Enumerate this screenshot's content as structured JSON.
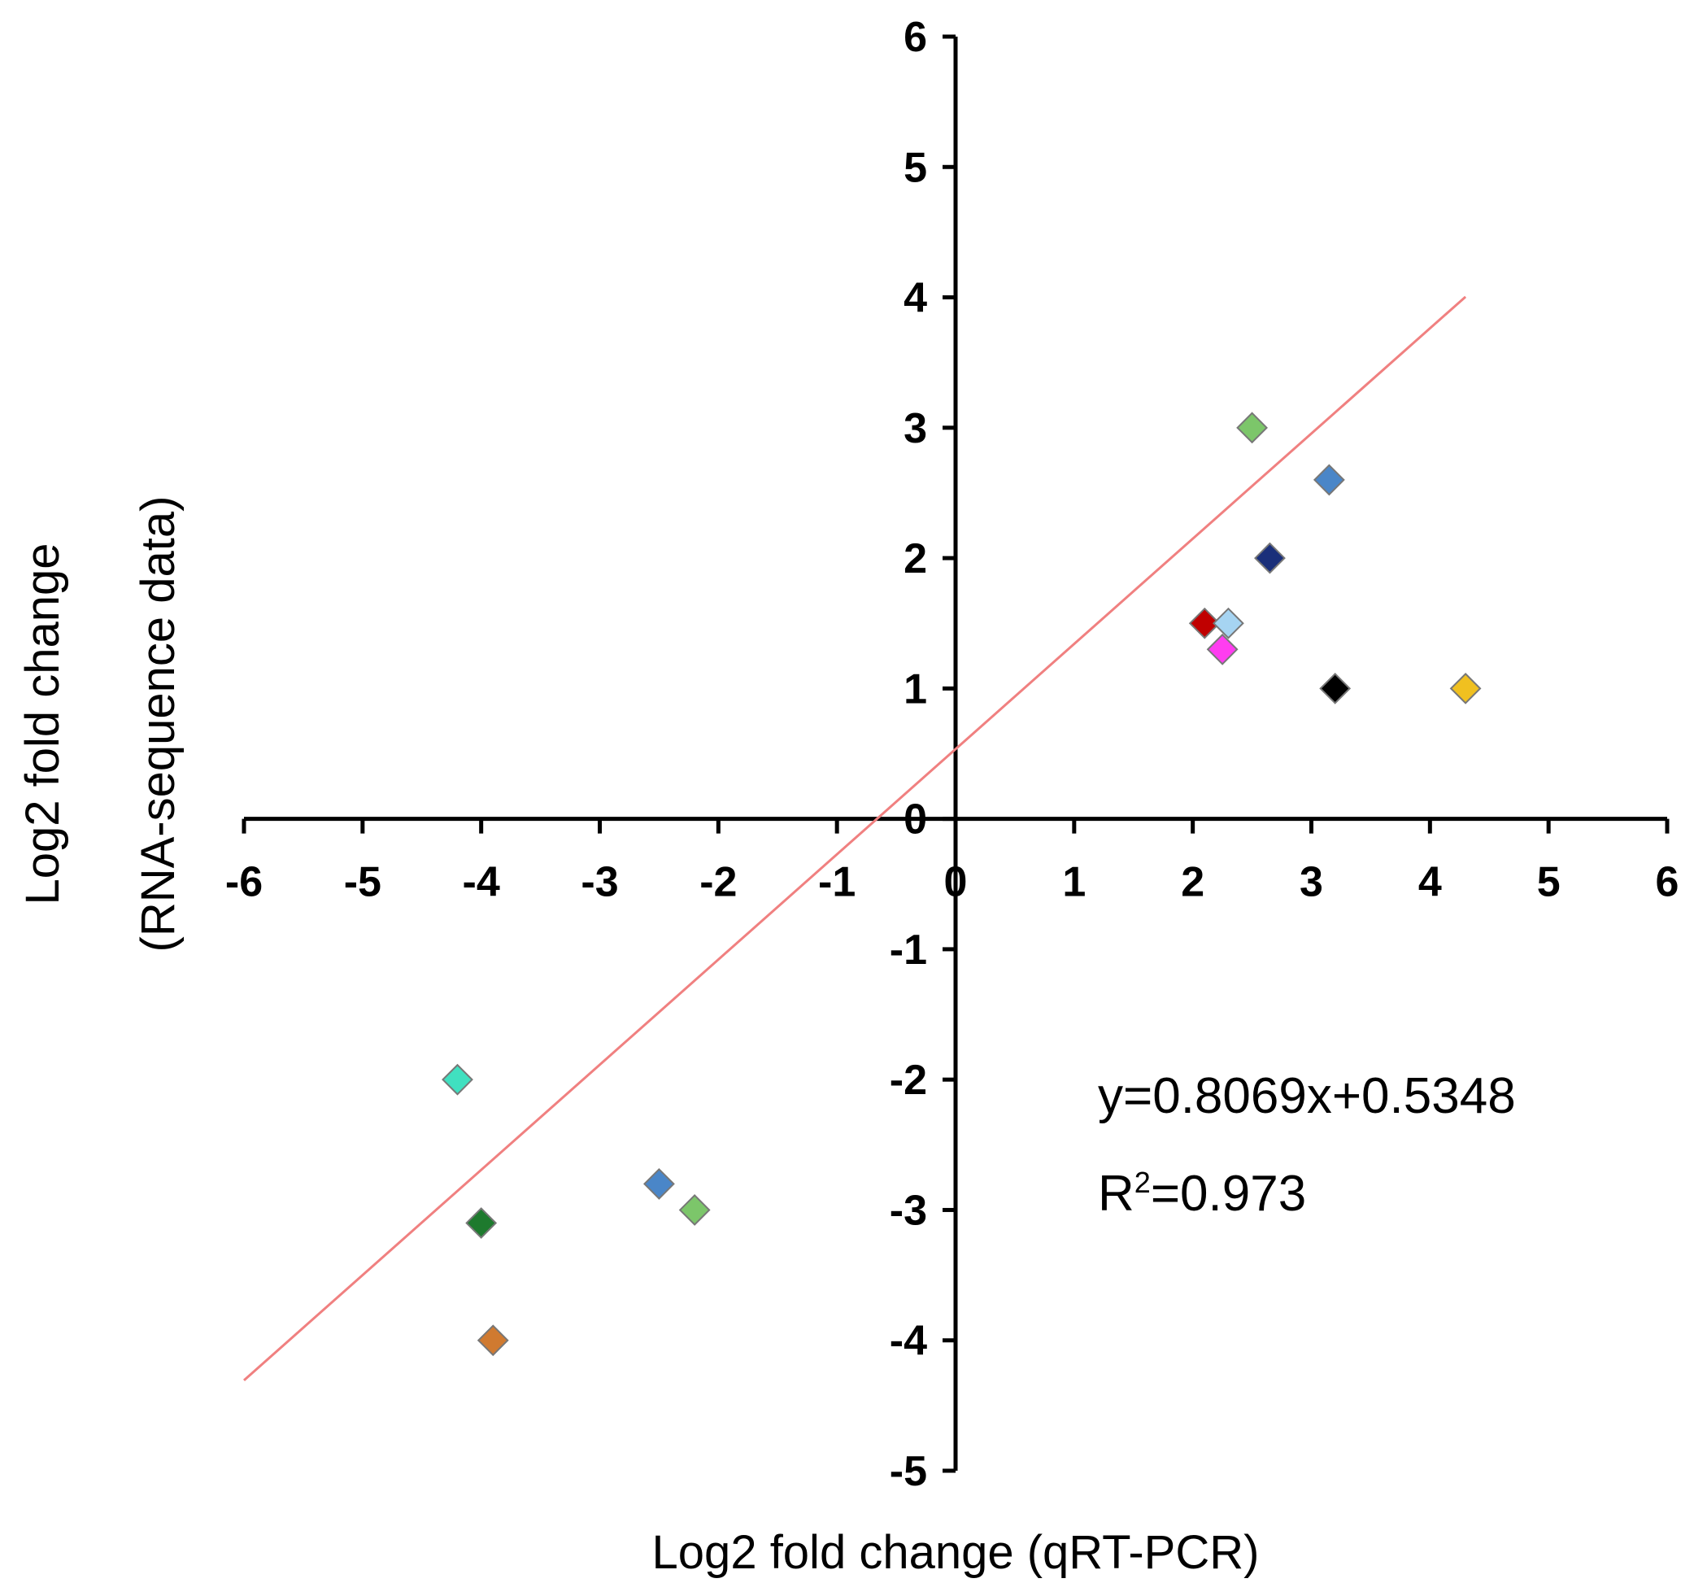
{
  "chart_data": {
    "type": "scatter",
    "title": "",
    "xlabel": "Log2 fold change (qRT-PCR)",
    "ylabel_line1": "Log2 fold change",
    "ylabel_line2": "(RNA-sequence data)",
    "xlim": [
      -6,
      6
    ],
    "ylim": [
      -5,
      6
    ],
    "xticks": [
      -6,
      -5,
      -4,
      -3,
      -2,
      -1,
      0,
      1,
      2,
      3,
      4,
      5,
      6
    ],
    "yticks": [
      -5,
      -4,
      -3,
      -2,
      -1,
      0,
      1,
      2,
      3,
      4,
      5,
      6
    ],
    "points": [
      {
        "x": -4.2,
        "y": -2.0,
        "color": "#40e0c0"
      },
      {
        "x": -4.0,
        "y": -3.1,
        "color": "#1e7a2e"
      },
      {
        "x": -3.9,
        "y": -4.0,
        "color": "#d07a30"
      },
      {
        "x": -2.5,
        "y": -2.8,
        "color": "#4a86c8"
      },
      {
        "x": -2.2,
        "y": -3.0,
        "color": "#7cc66a"
      },
      {
        "x": 2.1,
        "y": 1.5,
        "color": "#c00000"
      },
      {
        "x": 2.3,
        "y": 1.5,
        "color": "#a6d4f2"
      },
      {
        "x": 2.25,
        "y": 1.3,
        "color": "#ff3df0"
      },
      {
        "x": 2.5,
        "y": 3.0,
        "color": "#7cc66a"
      },
      {
        "x": 2.65,
        "y": 2.0,
        "color": "#1a2f7a"
      },
      {
        "x": 3.15,
        "y": 2.6,
        "color": "#4a86c8"
      },
      {
        "x": 3.2,
        "y": 1.0,
        "color": "#000000"
      },
      {
        "x": 4.3,
        "y": 1.0,
        "color": "#f0c020"
      }
    ],
    "trendline": {
      "slope": 0.8069,
      "intercept": 0.5348,
      "x_range": [
        -6,
        4.3
      ],
      "color": "#f08080"
    },
    "equation": "y=0.8069x+0.5348",
    "r2_prefix": "R",
    "r2_sup": "2",
    "r2_value": "=0.973"
  }
}
